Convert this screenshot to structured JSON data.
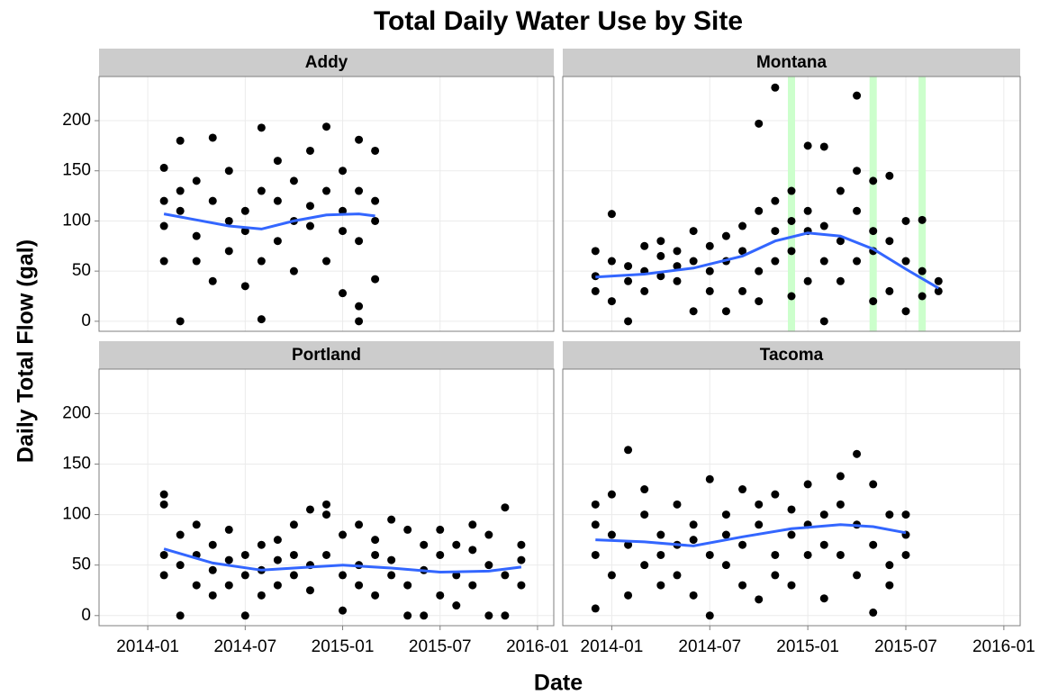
{
  "title": "Total Daily Water Use by Site",
  "x_label": "Date",
  "y_label": "Daily Total Flow (gal)",
  "chart_data": [
    {
      "type": "scatter",
      "title": "Addy",
      "color": "#000000",
      "xlim": [
        "2013-10",
        "2016-02"
      ],
      "xticks": [
        "2014-01",
        "2014-07",
        "2015-01",
        "2015-07",
        "2016-01"
      ],
      "ylim": [
        -10,
        244
      ],
      "yticks": [
        0,
        50,
        100,
        150,
        200
      ],
      "grid": true,
      "x": [
        "2014-02",
        "2014-02",
        "2014-02",
        "2014-02",
        "2014-03",
        "2014-03",
        "2014-03",
        "2014-03",
        "2014-04",
        "2014-04",
        "2014-04",
        "2014-05",
        "2014-05",
        "2014-05",
        "2014-06",
        "2014-06",
        "2014-06",
        "2014-07",
        "2014-07",
        "2014-07",
        "2014-08",
        "2014-08",
        "2014-08",
        "2014-08",
        "2014-09",
        "2014-09",
        "2014-09",
        "2014-10",
        "2014-10",
        "2014-10",
        "2014-11",
        "2014-11",
        "2014-11",
        "2014-12",
        "2014-12",
        "2014-12",
        "2015-01",
        "2015-01",
        "2015-01",
        "2015-01",
        "2015-02",
        "2015-02",
        "2015-02",
        "2015-02",
        "2015-02",
        "2015-03",
        "2015-03",
        "2015-03",
        "2015-03"
      ],
      "values": [
        153,
        60,
        120,
        95,
        130,
        0,
        180,
        110,
        85,
        140,
        60,
        120,
        183,
        40,
        100,
        150,
        70,
        35,
        110,
        90,
        2,
        130,
        60,
        193,
        80,
        120,
        160,
        100,
        140,
        50,
        170,
        95,
        115,
        194,
        130,
        60,
        90,
        110,
        150,
        28,
        181,
        0,
        130,
        80,
        15,
        120,
        170,
        42,
        100
      ],
      "trend": {
        "color": "#3366ff",
        "x": [
          "2014-02",
          "2014-04",
          "2014-06",
          "2014-08",
          "2014-10",
          "2014-12",
          "2015-02",
          "2015-03"
        ],
        "values": [
          107,
          101,
          95,
          92,
          100,
          106,
          107,
          105
        ]
      }
    },
    {
      "type": "scatter",
      "title": "Montana",
      "color": "#000000",
      "xlim": [
        "2013-10",
        "2016-02"
      ],
      "xticks": [
        "2014-01",
        "2014-07",
        "2015-01",
        "2015-07",
        "2016-01"
      ],
      "ylim": [
        -10,
        244
      ],
      "yticks": [
        0,
        50,
        100,
        150,
        200
      ],
      "grid": true,
      "highlight_x": [
        "2014-12",
        "2015-05",
        "2015-08"
      ],
      "highlight_color": "#ccffcc",
      "x": [
        "2013-12",
        "2013-12",
        "2013-12",
        "2014-01",
        "2014-01",
        "2014-01",
        "2014-02",
        "2014-02",
        "2014-02",
        "2014-03",
        "2014-03",
        "2014-03",
        "2014-04",
        "2014-04",
        "2014-04",
        "2014-05",
        "2014-05",
        "2014-05",
        "2014-06",
        "2014-06",
        "2014-06",
        "2014-07",
        "2014-07",
        "2014-07",
        "2014-08",
        "2014-08",
        "2014-08",
        "2014-09",
        "2014-09",
        "2014-09",
        "2014-10",
        "2014-10",
        "2014-10",
        "2014-10",
        "2014-11",
        "2014-11",
        "2014-11",
        "2014-11",
        "2014-12",
        "2014-12",
        "2014-12",
        "2014-12",
        "2015-01",
        "2015-01",
        "2015-01",
        "2015-01",
        "2015-02",
        "2015-02",
        "2015-02",
        "2015-02",
        "2015-03",
        "2015-03",
        "2015-03",
        "2015-04",
        "2015-04",
        "2015-04",
        "2015-04",
        "2015-05",
        "2015-05",
        "2015-05",
        "2015-05",
        "2015-06",
        "2015-06",
        "2015-06",
        "2015-07",
        "2015-07",
        "2015-07",
        "2015-08",
        "2015-08",
        "2015-08",
        "2015-09",
        "2015-09"
      ],
      "values": [
        45,
        70,
        30,
        60,
        107,
        20,
        40,
        55,
        0,
        50,
        75,
        30,
        65,
        45,
        80,
        55,
        40,
        70,
        60,
        90,
        10,
        50,
        75,
        30,
        85,
        60,
        10,
        70,
        95,
        30,
        197,
        110,
        50,
        20,
        233,
        90,
        120,
        60,
        130,
        70,
        25,
        100,
        175,
        110,
        40,
        90,
        95,
        0,
        174,
        60,
        130,
        80,
        40,
        225,
        110,
        150,
        60,
        140,
        90,
        20,
        70,
        145,
        80,
        30,
        100,
        60,
        10,
        101,
        50,
        25,
        30,
        40
      ],
      "trend": {
        "color": "#3366ff",
        "x": [
          "2013-12",
          "2014-03",
          "2014-06",
          "2014-09",
          "2014-11",
          "2015-01",
          "2015-03",
          "2015-05",
          "2015-07",
          "2015-09"
        ],
        "values": [
          44,
          47,
          53,
          65,
          80,
          88,
          85,
          72,
          52,
          33
        ]
      }
    },
    {
      "type": "scatter",
      "title": "Portland",
      "color": "#000000",
      "xlim": [
        "2013-10",
        "2016-02"
      ],
      "xticks": [
        "2014-01",
        "2014-07",
        "2015-01",
        "2015-07",
        "2016-01"
      ],
      "ylim": [
        -10,
        244
      ],
      "yticks": [
        0,
        50,
        100,
        150,
        200
      ],
      "grid": true,
      "x": [
        "2014-02",
        "2014-02",
        "2014-02",
        "2014-02",
        "2014-03",
        "2014-03",
        "2014-03",
        "2014-04",
        "2014-04",
        "2014-04",
        "2014-05",
        "2014-05",
        "2014-05",
        "2014-06",
        "2014-06",
        "2014-06",
        "2014-07",
        "2014-07",
        "2014-07",
        "2014-08",
        "2014-08",
        "2014-08",
        "2014-09",
        "2014-09",
        "2014-09",
        "2014-10",
        "2014-10",
        "2014-10",
        "2014-11",
        "2014-11",
        "2014-11",
        "2014-12",
        "2014-12",
        "2014-12",
        "2015-01",
        "2015-01",
        "2015-01",
        "2015-02",
        "2015-02",
        "2015-02",
        "2015-03",
        "2015-03",
        "2015-03",
        "2015-04",
        "2015-04",
        "2015-04",
        "2015-05",
        "2015-05",
        "2015-05",
        "2015-06",
        "2015-06",
        "2015-06",
        "2015-07",
        "2015-07",
        "2015-07",
        "2015-08",
        "2015-08",
        "2015-08",
        "2015-09",
        "2015-09",
        "2015-09",
        "2015-10",
        "2015-10",
        "2015-10",
        "2015-11",
        "2015-11",
        "2015-11",
        "2015-12",
        "2015-12",
        "2015-12"
      ],
      "values": [
        110,
        120,
        40,
        60,
        80,
        0,
        50,
        90,
        30,
        60,
        70,
        45,
        20,
        55,
        85,
        30,
        60,
        0,
        40,
        45,
        70,
        20,
        55,
        30,
        75,
        90,
        40,
        60,
        105,
        50,
        25,
        100,
        110,
        60,
        80,
        40,
        5,
        90,
        50,
        30,
        75,
        20,
        60,
        55,
        95,
        40,
        85,
        30,
        0,
        70,
        0,
        45,
        60,
        20,
        85,
        40,
        70,
        10,
        65,
        30,
        90,
        0,
        50,
        80,
        107,
        40,
        0,
        70,
        30,
        55
      ],
      "trend": {
        "color": "#3366ff",
        "x": [
          "2014-02",
          "2014-05",
          "2014-08",
          "2014-11",
          "2015-01",
          "2015-04",
          "2015-07",
          "2015-10",
          "2015-12"
        ],
        "values": [
          66,
          52,
          45,
          48,
          50,
          47,
          43,
          44,
          48
        ]
      }
    },
    {
      "type": "scatter",
      "title": "Tacoma",
      "color": "#000000",
      "xlim": [
        "2013-10",
        "2016-02"
      ],
      "xticks": [
        "2014-01",
        "2014-07",
        "2015-01",
        "2015-07",
        "2016-01"
      ],
      "ylim": [
        -10,
        244
      ],
      "yticks": [
        0,
        50,
        100,
        150,
        200
      ],
      "grid": true,
      "x": [
        "2013-12",
        "2013-12",
        "2013-12",
        "2013-12",
        "2014-01",
        "2014-01",
        "2014-01",
        "2014-02",
        "2014-02",
        "2014-02",
        "2014-03",
        "2014-03",
        "2014-03",
        "2014-04",
        "2014-04",
        "2014-04",
        "2014-05",
        "2014-05",
        "2014-05",
        "2014-06",
        "2014-06",
        "2014-06",
        "2014-07",
        "2014-07",
        "2014-07",
        "2014-08",
        "2014-08",
        "2014-08",
        "2014-09",
        "2014-09",
        "2014-09",
        "2014-10",
        "2014-10",
        "2014-10",
        "2014-11",
        "2014-11",
        "2014-11",
        "2014-12",
        "2014-12",
        "2014-12",
        "2015-01",
        "2015-01",
        "2015-01",
        "2015-02",
        "2015-02",
        "2015-02",
        "2015-03",
        "2015-03",
        "2015-03",
        "2015-04",
        "2015-04",
        "2015-04",
        "2015-05",
        "2015-05",
        "2015-05",
        "2015-06",
        "2015-06",
        "2015-06",
        "2015-07",
        "2015-07",
        "2015-07"
      ],
      "values": [
        7,
        90,
        60,
        110,
        120,
        40,
        80,
        164,
        70,
        20,
        100,
        50,
        125,
        80,
        30,
        60,
        110,
        70,
        40,
        90,
        20,
        75,
        0,
        60,
        135,
        50,
        100,
        80,
        125,
        70,
        30,
        90,
        16,
        110,
        120,
        60,
        40,
        105,
        80,
        30,
        130,
        90,
        60,
        100,
        17,
        70,
        138,
        60,
        110,
        160,
        90,
        40,
        130,
        70,
        3,
        100,
        50,
        30,
        80,
        100,
        60
      ],
      "trend": {
        "color": "#3366ff",
        "x": [
          "2013-12",
          "2014-03",
          "2014-06",
          "2014-09",
          "2014-12",
          "2015-03",
          "2015-05",
          "2015-07"
        ],
        "values": [
          75,
          73,
          69,
          78,
          86,
          90,
          88,
          82
        ]
      }
    }
  ]
}
